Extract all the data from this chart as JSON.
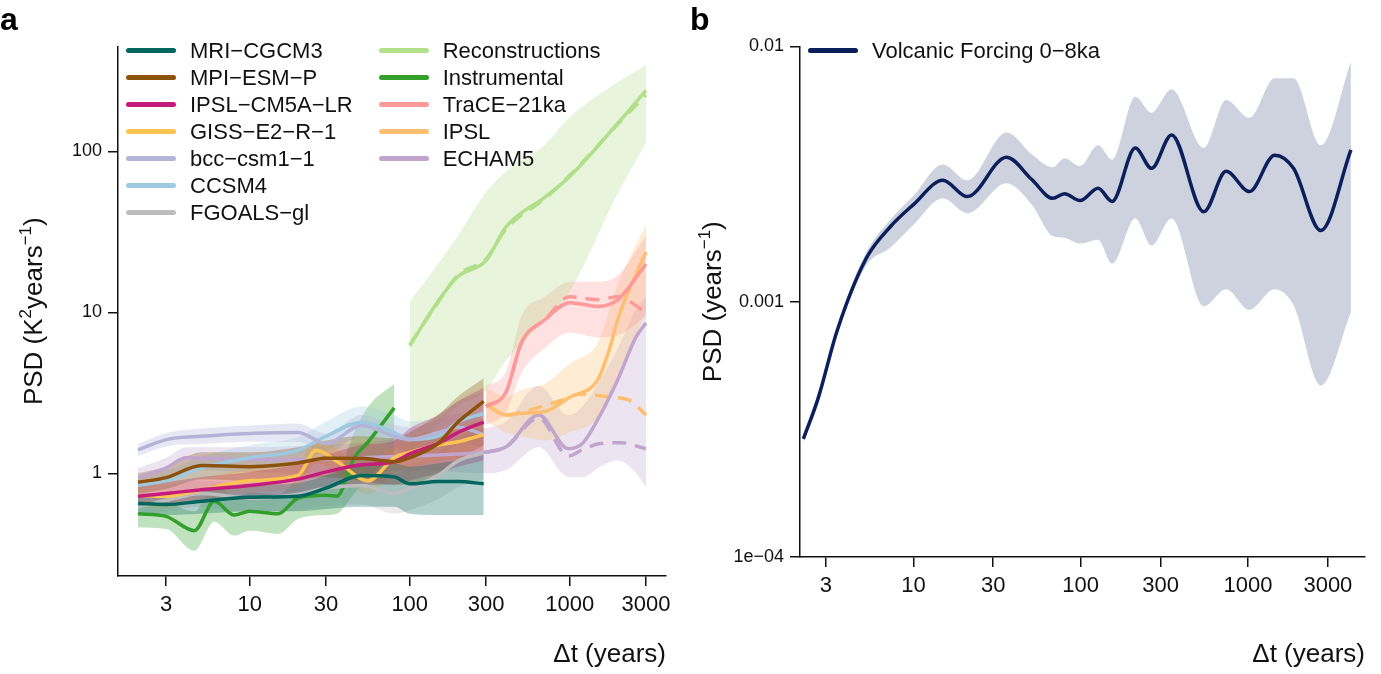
{
  "chart_data": [
    {
      "type": "line",
      "title": "a",
      "xlabel": "Δt (years)",
      "ylabel": "PSD (K$^{2}$years$^{−1}$)",
      "log": "xy",
      "legend": "top left",
      "marker": "none",
      "xlim": [
        1.5,
        4000
      ],
      "ylim": [
        0.23,
        450
      ],
      "xticks": [
        3,
        10,
        30,
        100,
        300,
        1000,
        3000
      ],
      "yticks": [
        1,
        10,
        100
      ],
      "series": [
        {
          "name": "MRI−CGCM3",
          "color": "#01665e",
          "x": [
            2,
            3,
            5,
            10,
            20,
            30,
            50,
            80,
            100,
            150,
            200,
            290
          ],
          "values": [
            0.65,
            0.64,
            0.67,
            0.71,
            0.72,
            0.81,
            0.97,
            0.95,
            0.86,
            0.89,
            0.89,
            0.86
          ],
          "lower": [
            0.55,
            0.55,
            0.56,
            0.58,
            0.58,
            0.6,
            0.62,
            0.62,
            0.56,
            0.55,
            0.55,
            0.55
          ],
          "upper": [
            0.75,
            0.74,
            0.78,
            0.84,
            0.87,
            0.97,
            1.15,
            1.15,
            1.1,
            1.15,
            1.2,
            1.3
          ]
        },
        {
          "name": "MPI−ESM−P",
          "color": "#8c510a",
          "x": [
            2,
            3,
            5,
            10,
            20,
            30,
            50,
            80,
            100,
            150,
            200,
            290
          ],
          "values": [
            0.88,
            0.94,
            1.12,
            1.1,
            1.16,
            1.24,
            1.24,
            1.18,
            1.25,
            1.53,
            2.08,
            2.8
          ],
          "lower": [
            0.75,
            0.8,
            0.92,
            0.9,
            0.92,
            0.95,
            0.9,
            0.85,
            0.85,
            0.95,
            1.2,
            1.5
          ],
          "upper": [
            1.0,
            1.1,
            1.35,
            1.35,
            1.45,
            1.6,
            1.7,
            1.65,
            1.8,
            2.3,
            3.0,
            3.9
          ]
        },
        {
          "name": "IPSL−CM5A−LR",
          "color": "#c51b7d",
          "x": [
            2,
            3,
            5,
            10,
            20,
            30,
            50,
            80,
            100,
            150,
            200,
            290
          ],
          "values": [
            0.72,
            0.75,
            0.79,
            0.84,
            0.92,
            1.02,
            1.13,
            1.18,
            1.32,
            1.53,
            1.79,
            2.08
          ],
          "lower": [
            0.62,
            0.64,
            0.66,
            0.7,
            0.74,
            0.8,
            0.85,
            0.85,
            0.9,
            1.0,
            1.1,
            1.2
          ],
          "upper": [
            0.84,
            0.88,
            0.95,
            1.02,
            1.14,
            1.3,
            1.5,
            1.6,
            1.9,
            2.3,
            2.8,
            3.4
          ]
        },
        {
          "name": "GISS−E2−R−1",
          "color": "#fec44f",
          "x": [
            2,
            3,
            5,
            10,
            20,
            26,
            35,
            55,
            80,
            100,
            150,
            200,
            290
          ],
          "values": [
            0.73,
            0.72,
            0.79,
            0.9,
            0.97,
            1.39,
            1.19,
            0.9,
            1.25,
            1.35,
            1.5,
            1.57,
            1.74
          ],
          "lower": [
            0.62,
            0.61,
            0.67,
            0.76,
            0.82,
            1.15,
            0.98,
            0.74,
            1.0,
            1.08,
            1.2,
            1.25,
            1.35
          ],
          "upper": [
            0.86,
            0.85,
            0.93,
            1.06,
            1.15,
            1.65,
            1.42,
            1.08,
            1.5,
            1.65,
            1.85,
            1.95,
            2.2
          ]
        },
        {
          "name": "bcc−csm1−1",
          "color": "#b4b4d9",
          "x": [
            2,
            3,
            5,
            10,
            20,
            30,
            50,
            80,
            100,
            150,
            200,
            290
          ],
          "values": [
            1.4,
            1.62,
            1.7,
            1.77,
            1.79,
            1.53,
            1.98,
            1.7,
            1.62,
            1.79,
            1.93,
            1.74
          ],
          "lower": [
            1.28,
            1.47,
            1.52,
            1.57,
            1.57,
            1.33,
            1.7,
            1.45,
            1.37,
            1.5,
            1.6,
            1.42
          ],
          "upper": [
            1.52,
            1.78,
            1.9,
            1.98,
            2.04,
            1.76,
            2.3,
            2.0,
            1.92,
            2.15,
            2.35,
            2.15
          ]
        },
        {
          "name": "CCSM4",
          "color": "#9ecae1",
          "x": [
            2,
            3,
            5,
            10,
            20,
            30,
            50,
            80,
            100,
            150,
            200,
            290
          ],
          "values": [
            0.84,
            0.9,
            1.08,
            1.25,
            1.39,
            1.7,
            2.08,
            1.79,
            1.62,
            1.7,
            2.08,
            2.36
          ],
          "lower": [
            0.74,
            0.78,
            0.92,
            1.05,
            1.15,
            1.38,
            1.65,
            1.4,
            1.25,
            1.28,
            1.52,
            1.7
          ],
          "upper": [
            0.95,
            1.04,
            1.27,
            1.5,
            1.68,
            2.1,
            2.6,
            2.3,
            2.1,
            2.25,
            2.8,
            3.2
          ]
        },
        {
          "name": "FGOALS−gl",
          "color": "#bdbdbd",
          "x": [
            2,
            3,
            5,
            10,
            20,
            30,
            50,
            80,
            100,
            150,
            200,
            290
          ],
          "values": [
            0.62,
            0.68,
            0.75,
            0.7,
            0.74,
            0.81,
            0.84,
            0.75,
            0.81,
            0.97,
            1.19,
            1.35
          ],
          "lower": [
            0.55,
            0.58,
            0.62,
            0.57,
            0.59,
            0.63,
            0.64,
            0.56,
            0.59,
            0.69,
            0.82,
            0.92
          ],
          "upper": [
            0.7,
            0.78,
            0.9,
            0.86,
            0.93,
            1.04,
            1.1,
            1.0,
            1.1,
            1.36,
            1.7,
            1.95
          ]
        },
        {
          "name": "Reconstructions",
          "color": "#b2df8a",
          "x": [
            100,
            150,
            200,
            300,
            400,
            700,
            1000,
            2000,
            3000
          ],
          "values": [
            6.2,
            11.7,
            16.7,
            21,
            34,
            52,
            70,
            150,
            240
          ],
          "lower": [
            1.3,
            2.0,
            2.6,
            3.3,
            5,
            9,
            13.5,
            55,
            113
          ],
          "upper": [
            11.7,
            20,
            30,
            56,
            75,
            110,
            163,
            270,
            345
          ]
        },
        {
          "name": "Instrumental",
          "color": "#33a02c",
          "x": [
            2,
            3,
            4.5,
            6,
            8,
            10,
            15,
            20,
            30,
            35,
            45,
            55,
            80
          ],
          "values": [
            0.56,
            0.54,
            0.44,
            0.67,
            0.55,
            0.58,
            0.56,
            0.7,
            0.73,
            0.72,
            1.25,
            1.57,
            2.55
          ],
          "lower": [
            0.46,
            0.45,
            0.33,
            0.5,
            0.41,
            0.44,
            0.42,
            0.52,
            0.55,
            0.56,
            0.75,
            0.95,
            1.3
          ],
          "upper": [
            0.68,
            0.66,
            0.58,
            0.86,
            0.72,
            0.76,
            0.74,
            0.92,
            0.98,
            1.0,
            1.8,
            2.6,
            3.6
          ]
        },
        {
          "name": "TraCE−21ka",
          "color": "#fb9a99",
          "x": [
            300,
            400,
            500,
            700,
            1000,
            1500,
            2000,
            3000
          ],
          "values": [
            2.6,
            3.2,
            6.5,
            9.0,
            11.5,
            10.9,
            12.0,
            20
          ],
          "lower": [
            2.0,
            2.4,
            4.2,
            6.0,
            7.5,
            7.0,
            7.2,
            9.5
          ],
          "upper": [
            3.5,
            4.3,
            9.5,
            12.5,
            15.5,
            15.5,
            17,
            30
          ]
        },
        {
          "name": "IPSL",
          "color": "#fdbf6f",
          "x": [
            300,
            400,
            500,
            700,
            1000,
            1500,
            1800,
            2000,
            3000
          ],
          "values": [
            2.68,
            2.3,
            2.36,
            2.42,
            2.97,
            3.83,
            6.2,
            9.1,
            23.8
          ],
          "lower": [
            2.1,
            1.8,
            1.7,
            1.6,
            1.8,
            2.2,
            3.0,
            4.0,
            10
          ],
          "upper": [
            3.4,
            3.0,
            3.3,
            3.6,
            4.8,
            6.5,
            11,
            15,
            35
          ]
        },
        {
          "name": "ECHAM5",
          "color": "#c2a5cf",
          "x": [
            2,
            3,
            4,
            10,
            20,
            50,
            100,
            200,
            290,
            400,
            640,
            980,
            1200,
            1550,
            2000,
            2600,
            3000
          ],
          "values": [
            0.94,
            1.08,
            1.25,
            1.22,
            1.22,
            1.25,
            null,
            1.32,
            1.35,
            1.46,
            2.3,
            1.42,
            1.53,
            2.3,
            3.83,
            7.04,
            8.6
          ],
          "lower": [
            0.8,
            0.9,
            1.05,
            1.02,
            1.0,
            1.0,
            1.05,
            1.02,
            1.0,
            1.05,
            1.45,
            0.95,
            0.95,
            1.1,
            1.2,
            1.0,
            0.82
          ],
          "upper": [
            1.08,
            1.25,
            1.45,
            1.45,
            1.48,
            1.55,
            1.65,
            1.7,
            1.9,
            2.1,
            3.5,
            2.3,
            2.6,
            3.8,
            6.0,
            10.5,
            12.5
          ]
        },
        {
          "color": "#b2df8a",
          "line_style": "dashed",
          "x": [
            100,
            150,
            200,
            300,
            400,
            700,
            1000,
            2000,
            3000
          ],
          "values": [
            6.3,
            11.5,
            17,
            21.5,
            33,
            51,
            71,
            148,
            225
          ]
        },
        {
          "color": "#fb9a99",
          "line_style": "dashed",
          "x": [
            300,
            400,
            500,
            700,
            1000,
            1500,
            2000,
            3000
          ],
          "values": [
            2.6,
            3.2,
            6.5,
            9.0,
            12.5,
            12.0,
            12.5,
            10
          ]
        },
        {
          "color": "#fdbf6f",
          "line_style": "dashed",
          "x": [
            300,
            400,
            520,
            900,
            1150,
            1450,
            1850,
            2400,
            3000
          ],
          "values": [
            2.68,
            2.3,
            2.42,
            2.86,
            3.1,
            3.05,
            2.97,
            2.82,
            2.3
          ]
        },
        {
          "color": "#c2a5cf",
          "line_style": "dashed",
          "x": [
            300,
            400,
            640,
            980,
            1200,
            1550,
            2100,
            3000
          ],
          "values": [
            1.35,
            1.46,
            2.2,
            1.28,
            1.4,
            1.53,
            1.55,
            1.42
          ]
        }
      ]
    },
    {
      "type": "line",
      "title": "b",
      "xlabel": "Δt (years)",
      "ylabel": "PSD (years$^{−1}$)",
      "log": "xy",
      "legend": "top left",
      "marker": "none",
      "xlim": [
        2.1,
        5000
      ],
      "ylim": [
        0.0001,
        0.01
      ],
      "xticks": [
        3,
        10,
        30,
        100,
        300,
        1000,
        3000
      ],
      "yticks": [
        {
          "value": 0.0001,
          "label": "1e−04"
        },
        0.001,
        0.01
      ],
      "series": [
        {
          "name": "Volcanic Forcing 0−8ka",
          "color": "#0b1f5c",
          "x": [
            2.2,
            2.7,
            3.5,
            5.2,
            7.3,
            10,
            15,
            21,
            36,
            51,
            68,
            80,
            99,
            127,
            154,
            212,
            265,
            349,
            544,
            739,
            1020,
            1440,
            1870,
            2720,
            4120
          ],
          "values": [
            0.00029,
            0.00042,
            0.00077,
            0.00147,
            0.00197,
            0.0024,
            0.00299,
            0.00258,
            0.00368,
            0.00301,
            0.00254,
            0.00265,
            0.00249,
            0.00278,
            0.00247,
            0.004,
            0.00333,
            0.0045,
            0.00225,
            0.00324,
            0.0027,
            0.00375,
            0.00333,
            0.0019,
            0.00393
          ],
          "lower": [
            0.00028,
            0.0004,
            0.00074,
            0.00138,
            0.00163,
            0.002,
            0.00254,
            0.00222,
            0.00291,
            0.0024,
            0.00181,
            0.00178,
            0.00169,
            0.00175,
            0.00141,
            0.00212,
            0.00166,
            0.00212,
            0.00096,
            0.00112,
            0.00093,
            0.00112,
            0.00097,
            0.00047,
            0.00091
          ],
          "upper": [
            0.0003,
            0.00043,
            0.0008,
            0.00155,
            0.0021,
            0.0026,
            0.00345,
            0.00299,
            0.0046,
            0.00378,
            0.00336,
            0.00365,
            0.0034,
            0.0041,
            0.0036,
            0.00635,
            0.0055,
            0.0068,
            0.004,
            0.00617,
            0.00525,
            0.0075,
            0.0075,
            0.0041,
            0.0087
          ]
        }
      ]
    }
  ]
}
